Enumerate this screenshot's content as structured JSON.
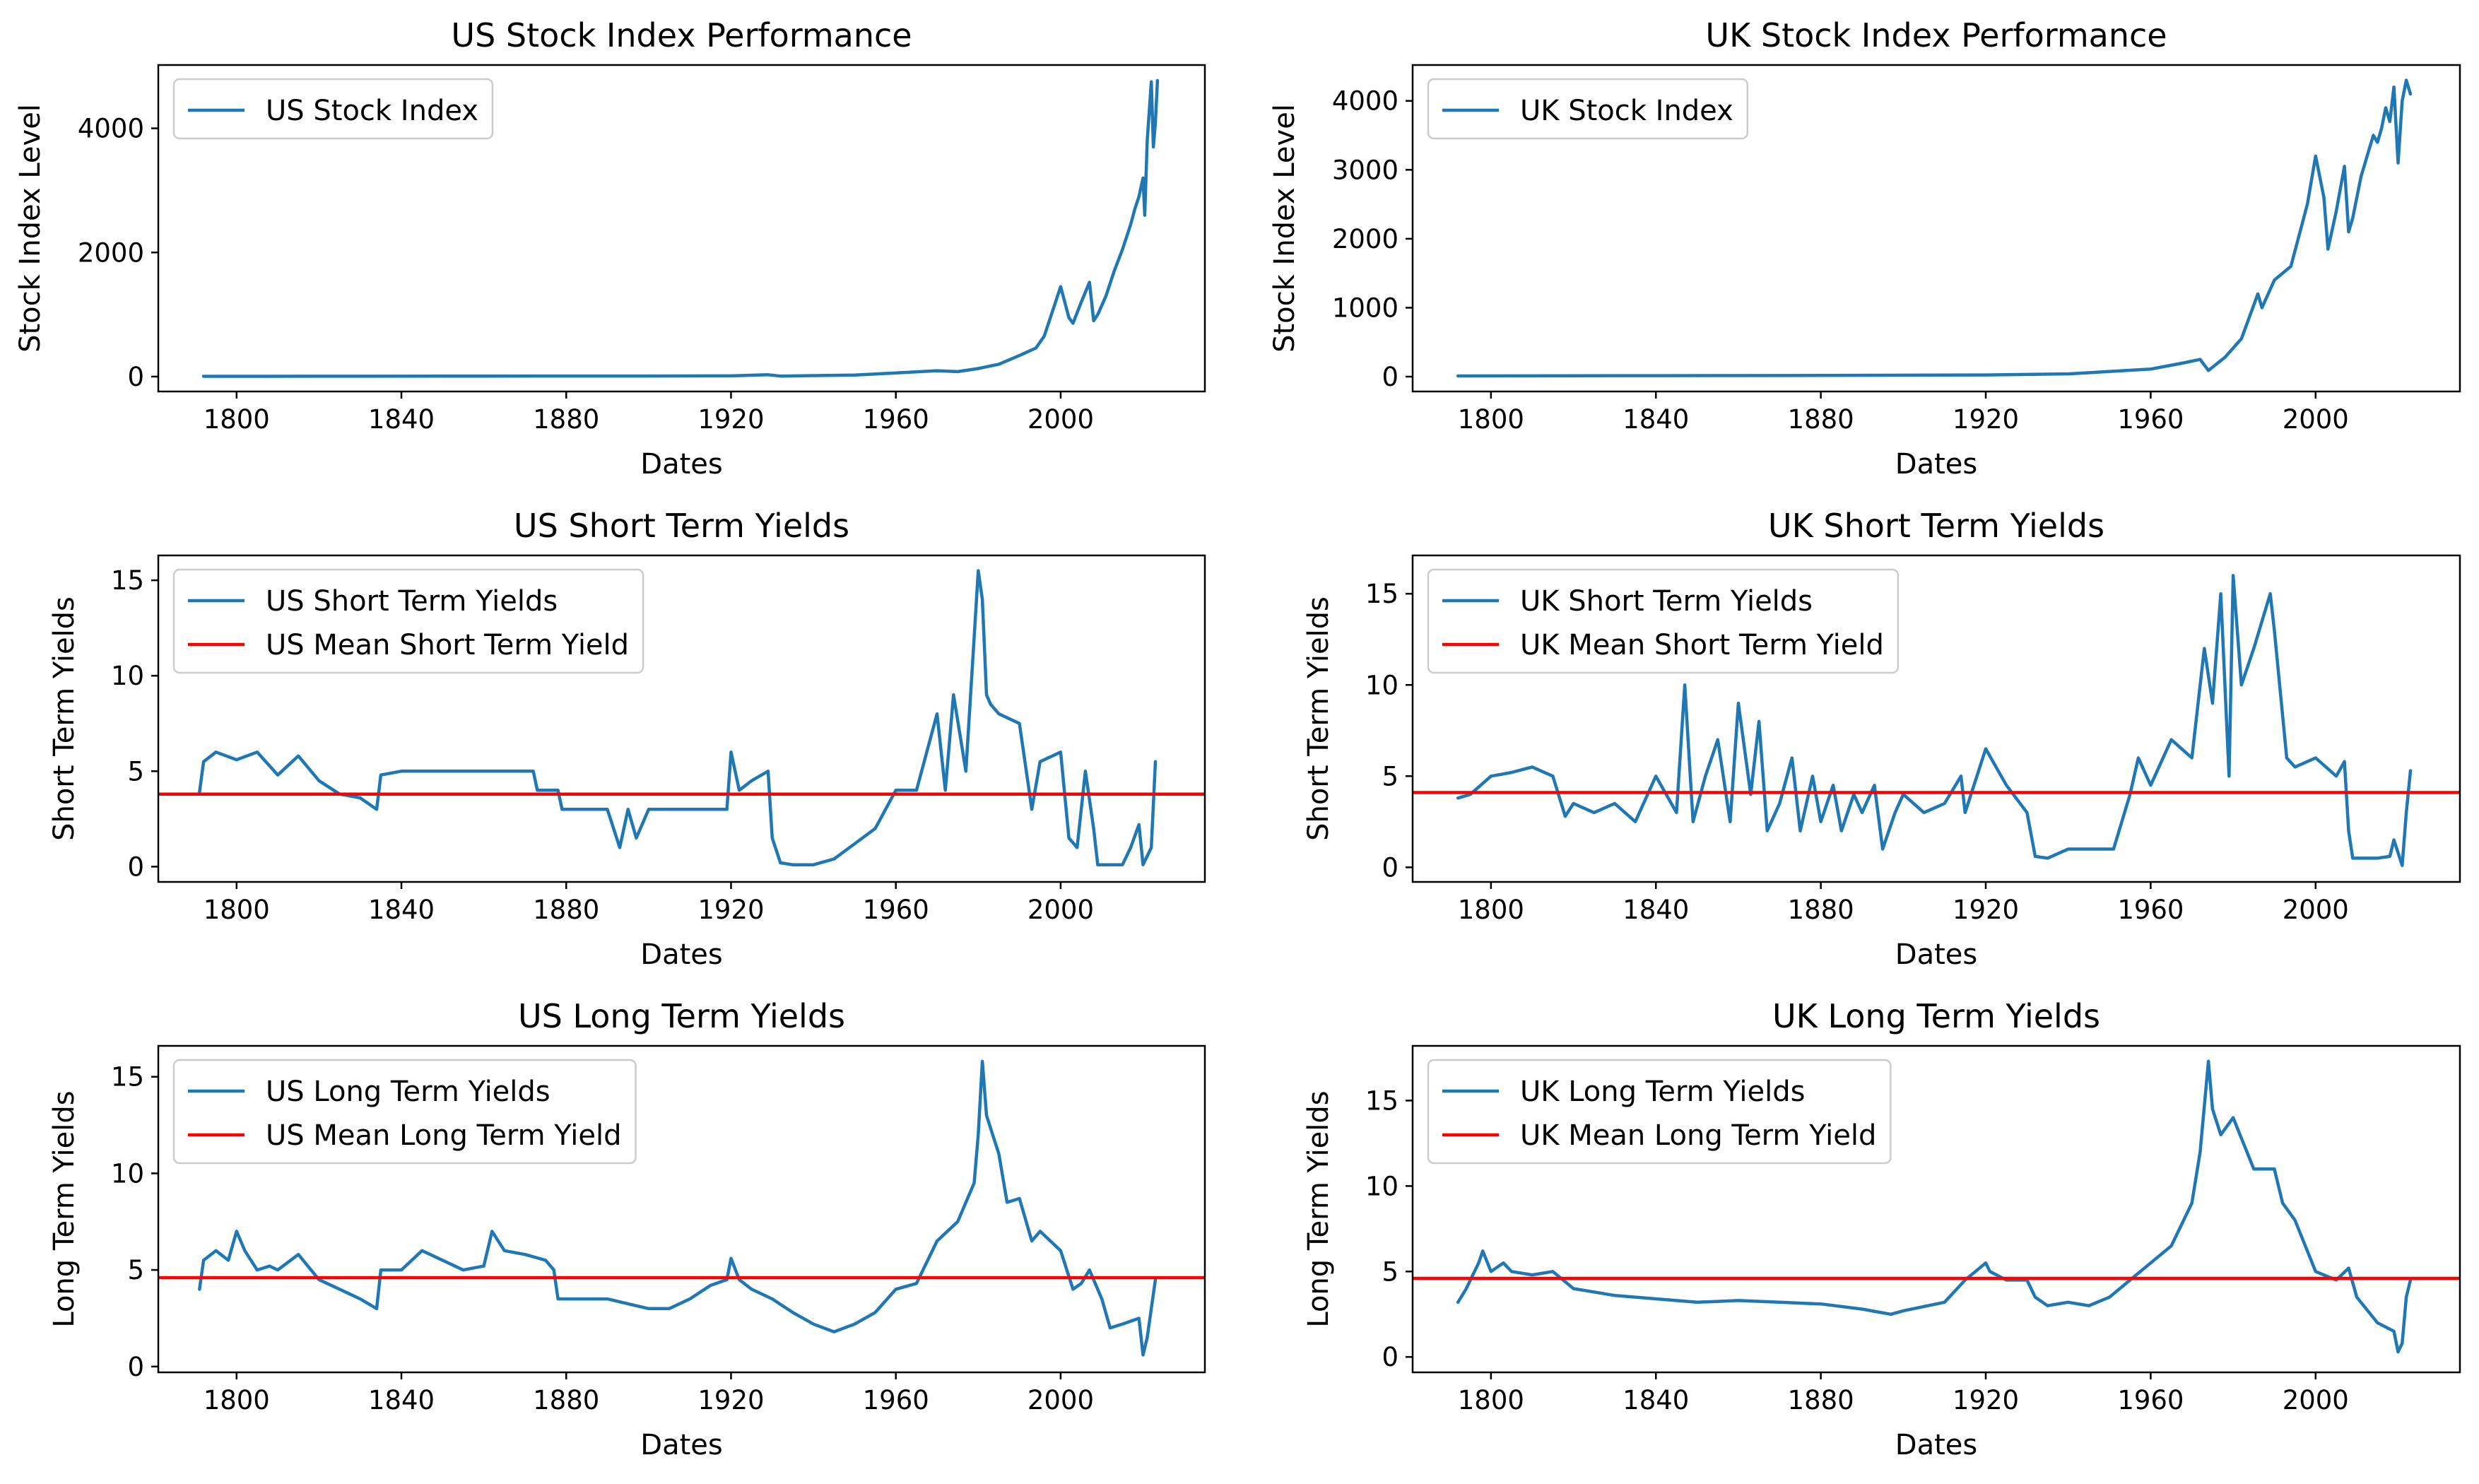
{
  "chart_data": [
    {
      "type": "line",
      "title": "US Stock Index Performance",
      "xlabel": "Dates",
      "ylabel": "Stock Index Level",
      "xlim": [
        1781,
        2035
      ],
      "ylim": [
        -240,
        5020
      ],
      "xticks": [
        1800,
        1840,
        1880,
        1920,
        1960,
        2000
      ],
      "yticks": [
        0,
        2000,
        4000
      ],
      "grid": false,
      "legend_position": "upper-left",
      "series": [
        {
          "name": "US Stock Index",
          "color": "#1f77b4",
          "x": [
            1792,
            1820,
            1860,
            1900,
            1920,
            1929,
            1932,
            1950,
            1960,
            1970,
            1975,
            1980,
            1985,
            1990,
            1994,
            1996,
            1998,
            2000,
            2002,
            2003,
            2005,
            2007,
            2008,
            2009,
            2011,
            2013,
            2015,
            2017,
            2018,
            2019,
            2020,
            2020.4,
            2021,
            2022,
            2022.5,
            2023,
            2023.5
          ],
          "y": [
            5,
            6,
            8,
            9,
            12,
            30,
            8,
            25,
            60,
            95,
            80,
            130,
            200,
            340,
            460,
            650,
            1050,
            1450,
            950,
            860,
            1200,
            1520,
            900,
            1000,
            1300,
            1700,
            2050,
            2450,
            2700,
            2900,
            3200,
            2600,
            3800,
            4750,
            3700,
            4100,
            4770
          ]
        }
      ]
    },
    {
      "type": "line",
      "title": "UK Stock Index Performance",
      "xlabel": "Dates",
      "ylabel": "Stock Index Level",
      "xlim": [
        1781,
        2035
      ],
      "ylim": [
        -215,
        4520
      ],
      "xticks": [
        1800,
        1840,
        1880,
        1920,
        1960,
        2000
      ],
      "yticks": [
        0,
        1000,
        2000,
        3000,
        4000
      ],
      "grid": false,
      "legend_position": "upper-left",
      "series": [
        {
          "name": "UK Stock Index",
          "color": "#1f77b4",
          "x": [
            1792,
            1840,
            1880,
            1920,
            1940,
            1960,
            1968,
            1972,
            1974,
            1978,
            1982,
            1986,
            1987,
            1990,
            1994,
            1998,
            2000,
            2002,
            2003,
            2005,
            2007,
            2008,
            2009,
            2011,
            2013,
            2014,
            2015,
            2016,
            2017,
            2018,
            2019,
            2020,
            2021,
            2022,
            2023
          ],
          "y": [
            10,
            15,
            18,
            25,
            40,
            110,
            200,
            250,
            90,
            280,
            550,
            1200,
            1000,
            1400,
            1600,
            2500,
            3200,
            2600,
            1850,
            2400,
            3050,
            2100,
            2300,
            2900,
            3300,
            3500,
            3400,
            3600,
            3900,
            3700,
            4200,
            3100,
            4000,
            4300,
            4100
          ]
        }
      ]
    },
    {
      "type": "line",
      "title": "US Short Term Yields",
      "xlabel": "Dates",
      "ylabel": "Short Term Yields",
      "xlim": [
        1781,
        2035
      ],
      "ylim": [
        -0.8,
        16.3
      ],
      "xticks": [
        1800,
        1840,
        1880,
        1920,
        1960,
        2000
      ],
      "yticks": [
        0,
        5,
        10,
        15
      ],
      "grid": false,
      "legend_position": "upper-left",
      "series": [
        {
          "name": "US Short Term Yields",
          "color": "#1f77b4",
          "x": [
            1791,
            1792,
            1795,
            1800,
            1805,
            1810,
            1815,
            1820,
            1825,
            1830,
            1834,
            1835,
            1840,
            1850,
            1860,
            1872,
            1873,
            1878,
            1879,
            1890,
            1893,
            1895,
            1897,
            1900,
            1919,
            1920,
            1922,
            1925,
            1929,
            1930,
            1932,
            1935,
            1940,
            1945,
            1950,
            1955,
            1960,
            1965,
            1970,
            1972,
            1974,
            1977,
            1979,
            1980,
            1981,
            1982,
            1983,
            1985,
            1990,
            1993,
            1995,
            2000,
            2002,
            2004,
            2006,
            2008,
            2009,
            2015,
            2017,
            2019,
            2020,
            2022,
            2023
          ],
          "y": [
            3.9,
            5.5,
            6,
            5.6,
            6,
            4.8,
            5.8,
            4.5,
            3.8,
            3.6,
            3,
            4.8,
            5,
            5,
            5,
            5,
            4,
            4,
            3,
            3,
            1,
            3,
            1.5,
            3,
            3,
            6,
            4,
            4.5,
            5,
            1.5,
            0.2,
            0.1,
            0.1,
            0.4,
            1.2,
            2,
            4,
            4,
            8,
            4,
            9,
            5,
            12,
            15.5,
            14,
            9,
            8.5,
            8,
            7.5,
            3,
            5.5,
            6,
            1.5,
            1,
            5,
            2,
            0.1,
            0.1,
            1,
            2.2,
            0.1,
            1,
            5.5
          ]
        },
        {
          "name": "US Mean Short Term Yield",
          "color": "#ff0000",
          "x": [
            1781,
            2035
          ],
          "y": [
            3.8,
            3.8
          ]
        }
      ]
    },
    {
      "type": "line",
      "title": "UK Short Term Yields",
      "xlabel": "Dates",
      "ylabel": "Short Term Yields",
      "xlim": [
        1781,
        2035
      ],
      "ylim": [
        -0.8,
        17.1
      ],
      "xticks": [
        1800,
        1840,
        1880,
        1920,
        1960,
        2000
      ],
      "yticks": [
        0,
        5,
        10,
        15
      ],
      "grid": false,
      "legend_position": "upper-left",
      "series": [
        {
          "name": "UK Short Term Yields",
          "color": "#1f77b4",
          "x": [
            1792,
            1795,
            1800,
            1805,
            1810,
            1815,
            1818,
            1820,
            1825,
            1830,
            1835,
            1840,
            1845,
            1847,
            1849,
            1852,
            1855,
            1858,
            1860,
            1863,
            1865,
            1867,
            1870,
            1873,
            1875,
            1878,
            1880,
            1883,
            1885,
            1888,
            1890,
            1893,
            1895,
            1898,
            1900,
            1905,
            1910,
            1914,
            1915,
            1920,
            1925,
            1930,
            1932,
            1935,
            1940,
            1945,
            1951,
            1955,
            1957,
            1960,
            1965,
            1970,
            1973,
            1975,
            1977,
            1979,
            1980,
            1982,
            1985,
            1989,
            1990,
            1993,
            1995,
            2000,
            2005,
            2007,
            2008,
            2009,
            2015,
            2018,
            2019,
            2021,
            2022,
            2023
          ],
          "y": [
            3.8,
            4,
            5,
            5.2,
            5.5,
            5,
            2.8,
            3.5,
            3,
            3.5,
            2.5,
            5,
            3,
            10,
            2.5,
            5,
            7,
            2.5,
            9,
            4,
            8,
            2,
            3.5,
            6,
            2,
            5,
            2.5,
            4.5,
            2,
            4,
            3,
            4.5,
            1,
            3,
            4,
            3,
            3.5,
            5,
            3,
            6.5,
            4.5,
            3,
            0.6,
            0.5,
            1,
            1,
            1,
            4,
            6,
            4.5,
            7,
            6,
            12,
            9,
            15,
            5,
            16,
            10,
            12,
            15,
            13,
            6,
            5.5,
            6,
            5,
            5.8,
            2,
            0.5,
            0.5,
            0.6,
            1.5,
            0.1,
            3,
            5.3
          ]
        },
        {
          "name": "UK Mean Short Term Yield",
          "color": "#ff0000",
          "x": [
            1781,
            2035
          ],
          "y": [
            4.1,
            4.1
          ]
        }
      ]
    },
    {
      "type": "line",
      "title": "US Long Term Yields",
      "xlabel": "Dates",
      "ylabel": "Long Term Yields",
      "xlim": [
        1781,
        2035
      ],
      "ylim": [
        -0.3,
        16.6
      ],
      "xticks": [
        1800,
        1840,
        1880,
        1920,
        1960,
        2000
      ],
      "yticks": [
        0,
        5,
        10,
        15
      ],
      "grid": false,
      "legend_position": "upper-left",
      "series": [
        {
          "name": "US Long Term Yields",
          "color": "#1f77b4",
          "x": [
            1791,
            1792,
            1795,
            1798,
            1800,
            1802,
            1805,
            1808,
            1810,
            1815,
            1820,
            1825,
            1830,
            1834,
            1835,
            1840,
            1845,
            1850,
            1855,
            1860,
            1862,
            1865,
            1870,
            1875,
            1877,
            1878,
            1880,
            1890,
            1900,
            1905,
            1910,
            1915,
            1919,
            1920,
            1922,
            1925,
            1930,
            1935,
            1940,
            1945,
            1950,
            1955,
            1960,
            1965,
            1970,
            1975,
            1979,
            1980,
            1981,
            1982,
            1985,
            1987,
            1990,
            1993,
            1995,
            2000,
            2003,
            2005,
            2007,
            2010,
            2012,
            2015,
            2019,
            2020,
            2021,
            2022,
            2023
          ],
          "y": [
            4,
            5.5,
            6,
            5.5,
            7,
            6,
            5,
            5.2,
            5,
            5.8,
            4.5,
            4,
            3.5,
            3,
            5,
            5,
            6,
            5.5,
            5,
            5.2,
            7,
            6,
            5.8,
            5.5,
            5,
            3.5,
            3.5,
            3.5,
            3,
            3,
            3.5,
            4.2,
            4.5,
            5.6,
            4.5,
            4,
            3.5,
            2.8,
            2.2,
            1.8,
            2.2,
            2.8,
            4,
            4.3,
            6.5,
            7.5,
            9.5,
            12,
            15.8,
            13,
            11,
            8.5,
            8.7,
            6.5,
            7,
            6,
            4,
            4.3,
            5,
            3.5,
            2,
            2.2,
            2.5,
            0.6,
            1.5,
            3,
            4.5
          ]
        },
        {
          "name": "US Mean Long Term Yield",
          "color": "#ff0000",
          "x": [
            1781,
            2035
          ],
          "y": [
            4.6,
            4.6
          ]
        }
      ]
    },
    {
      "type": "line",
      "title": "UK Long Term Yields",
      "xlabel": "Dates",
      "ylabel": "Long Term Yields",
      "xlim": [
        1781,
        2035
      ],
      "ylim": [
        -0.9,
        18.2
      ],
      "xticks": [
        1800,
        1840,
        1880,
        1920,
        1960,
        2000
      ],
      "yticks": [
        0,
        5,
        10,
        15
      ],
      "grid": false,
      "legend_position": "upper-left",
      "series": [
        {
          "name": "UK Long Term Yields",
          "color": "#1f77b4",
          "x": [
            1792,
            1794,
            1797,
            1798,
            1800,
            1803,
            1805,
            1810,
            1815,
            1820,
            1825,
            1830,
            1840,
            1850,
            1860,
            1870,
            1880,
            1890,
            1897,
            1900,
            1910,
            1915,
            1920,
            1921,
            1925,
            1930,
            1932,
            1935,
            1940,
            1945,
            1950,
            1955,
            1960,
            1965,
            1970,
            1972,
            1974,
            1975,
            1977,
            1980,
            1985,
            1990,
            1992,
            1995,
            2000,
            2005,
            2008,
            2010,
            2015,
            2019,
            2020,
            2021,
            2022,
            2023
          ],
          "y": [
            3.2,
            4,
            5.5,
            6.2,
            5,
            5.5,
            5,
            4.8,
            5,
            4,
            3.8,
            3.6,
            3.4,
            3.2,
            3.3,
            3.2,
            3.1,
            2.8,
            2.5,
            2.7,
            3.2,
            4.5,
            5.5,
            5,
            4.5,
            4.5,
            3.5,
            3,
            3.2,
            3,
            3.5,
            4.5,
            5.5,
            6.5,
            9,
            12,
            17.3,
            14.5,
            13,
            14,
            11,
            11,
            9,
            8,
            5,
            4.5,
            5.2,
            3.5,
            2,
            1.5,
            0.3,
            0.8,
            3.5,
            4.5
          ]
        },
        {
          "name": "UK Mean Long Term Yield",
          "color": "#ff0000",
          "x": [
            1781,
            2035
          ],
          "y": [
            4.6,
            4.6
          ]
        }
      ]
    }
  ]
}
